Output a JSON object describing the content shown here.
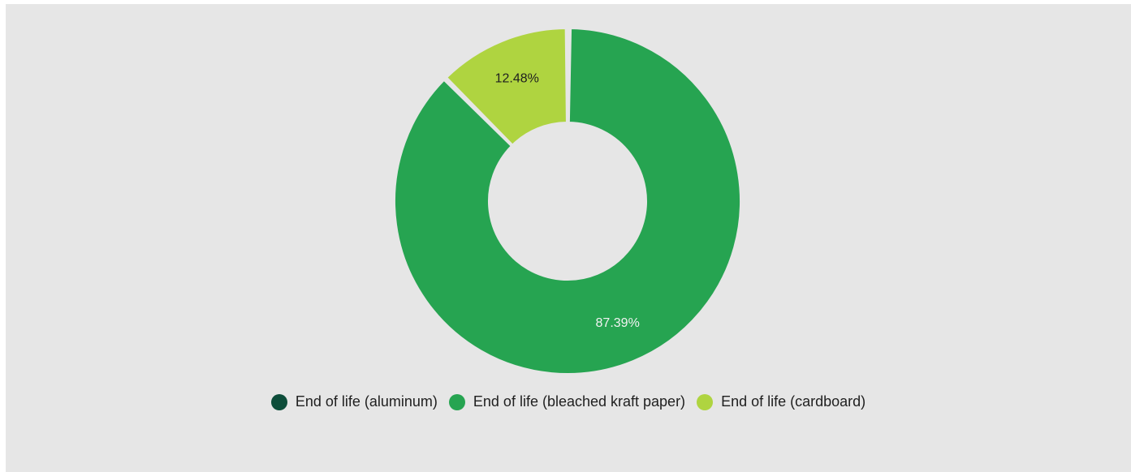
{
  "chart_data": {
    "type": "pie",
    "donut": true,
    "categories": [
      "End of life (aluminum)",
      "End of life (bleached kraft paper)",
      "End of life (cardboard)"
    ],
    "values": [
      0.13,
      87.39,
      12.48
    ],
    "data_labels": [
      "",
      "87.39%",
      "12.48%"
    ],
    "colors": [
      "#0d4d3a",
      "#26a451",
      "#afd440"
    ],
    "label_colors": [
      "#ffffff",
      "#f2f2f2",
      "#1f1f1f"
    ],
    "legend_position": "bottom"
  }
}
